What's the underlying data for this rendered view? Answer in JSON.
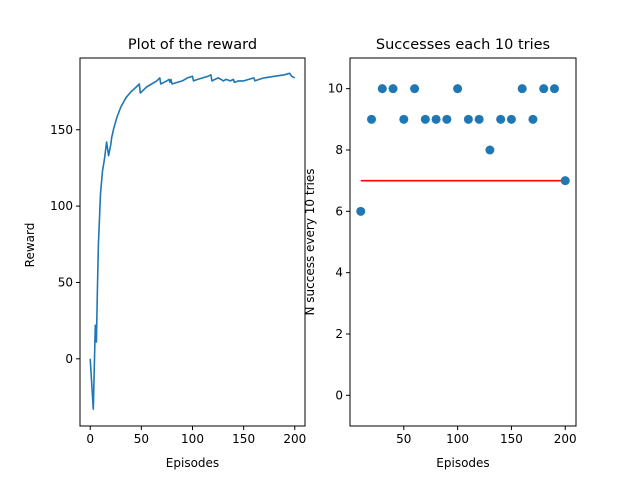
{
  "chart_data": [
    {
      "type": "line",
      "title": "Plot of the reward",
      "xlabel": "Episodes",
      "ylabel": "Reward",
      "xlim": [
        -10,
        210
      ],
      "ylim": [
        -44,
        197
      ],
      "xticks": [
        0,
        50,
        100,
        150,
        200
      ],
      "yticks": [
        0,
        50,
        100,
        150
      ],
      "grid": false,
      "color": "#1f77b4",
      "series": [
        {
          "x": [
            0,
            3,
            5,
            6,
            7,
            8,
            10,
            12,
            14,
            16,
            18,
            20,
            21,
            23,
            26,
            30,
            35,
            40,
            45,
            48,
            49,
            52,
            55,
            60,
            65,
            68,
            69,
            72,
            75,
            77,
            78,
            79,
            80,
            85,
            90,
            95,
            100,
            101,
            105,
            110,
            115,
            118,
            119,
            122,
            125,
            128,
            130,
            133,
            137,
            140,
            141,
            145,
            150,
            155,
            160,
            161,
            165,
            170,
            180,
            190,
            195,
            197,
            200
          ],
          "y": [
            0,
            -33,
            22,
            11,
            45,
            75,
            108,
            123,
            131,
            142,
            133,
            140,
            145,
            151,
            158,
            165,
            171,
            175,
            178,
            180,
            174,
            176,
            178,
            180,
            182,
            184,
            180,
            181,
            182,
            183,
            181,
            183,
            180,
            181,
            182,
            184,
            185,
            182,
            183,
            184,
            185,
            186,
            182,
            183,
            184,
            183,
            182,
            183,
            182,
            183,
            181,
            182,
            182,
            183,
            184,
            182,
            183,
            184,
            185,
            186,
            187,
            185,
            184
          ]
        }
      ]
    },
    {
      "type": "scatter",
      "title": "Successes each 10 tries",
      "xlabel": "Episodes",
      "ylabel": "N success every 10 tries",
      "xlim": [
        0,
        210
      ],
      "ylim": [
        -1,
        11
      ],
      "xticks": [
        50,
        100,
        150,
        200
      ],
      "yticks": [
        0,
        2,
        4,
        6,
        8,
        10
      ],
      "grid": false,
      "color": "#1f77b4",
      "series": [
        {
          "x": [
            10,
            20,
            30,
            40,
            50,
            60,
            70,
            80,
            90,
            100,
            110,
            120,
            130,
            140,
            150,
            160,
            170,
            180,
            190,
            200
          ],
          "y": [
            6,
            9,
            10,
            10,
            9,
            10,
            9,
            9,
            9,
            10,
            9,
            9,
            8,
            9,
            9,
            10,
            9,
            10,
            10,
            7
          ]
        }
      ],
      "hline": {
        "y": 7,
        "xmin": 10,
        "xmax": 200,
        "color": "#ff0000"
      }
    }
  ]
}
